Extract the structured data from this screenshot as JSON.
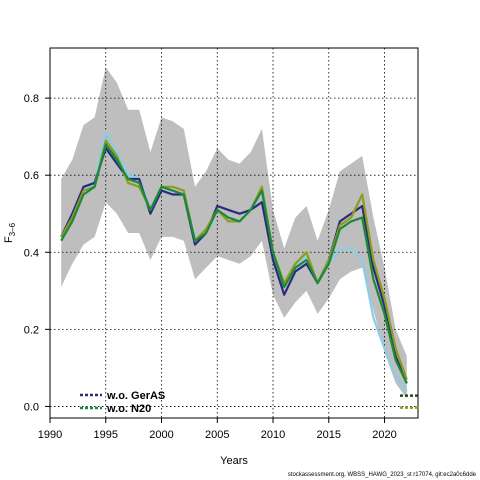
{
  "chart_data": {
    "type": "line",
    "title": "",
    "xlabel": "Years",
    "ylabel_main": "F",
    "ylabel_sub": "3–6",
    "xlim": [
      1990,
      2023
    ],
    "ylim": [
      -0.03,
      0.93
    ],
    "x_ticks": [
      1990,
      1995,
      2000,
      2005,
      2010,
      2015,
      2020
    ],
    "y_ticks": [
      0.0,
      0.2,
      0.4,
      0.6,
      0.8
    ],
    "y_tick_labels": [
      "0.0",
      "0.2",
      "0.4",
      "0.6",
      "0.8"
    ],
    "grid": true,
    "legend_position": "bottom-left",
    "footnote": "stockassessment.org, WBSS_HAWG_2023_st r17074, git:ec2a0c6dde",
    "x": [
      1991,
      1992,
      1993,
      1994,
      1995,
      1996,
      1997,
      1998,
      1999,
      2000,
      2001,
      2002,
      2003,
      2004,
      2005,
      2006,
      2007,
      2008,
      2009,
      2010,
      2011,
      2012,
      2013,
      2014,
      2015,
      2016,
      2017,
      2018,
      2019,
      2020,
      2021,
      2022
    ],
    "band": {
      "color": "#bebebe",
      "upper": [
        0.59,
        0.64,
        0.73,
        0.75,
        0.88,
        0.84,
        0.77,
        0.77,
        0.66,
        0.75,
        0.74,
        0.72,
        0.57,
        0.61,
        0.67,
        0.64,
        0.63,
        0.66,
        0.72,
        0.51,
        0.41,
        0.49,
        0.52,
        0.43,
        0.51,
        0.61,
        0.63,
        0.65,
        0.49,
        0.36,
        0.2,
        0.13
      ],
      "lower": [
        0.31,
        0.37,
        0.42,
        0.44,
        0.53,
        0.5,
        0.45,
        0.45,
        0.38,
        0.44,
        0.44,
        0.43,
        0.33,
        0.36,
        0.39,
        0.38,
        0.37,
        0.39,
        0.43,
        0.29,
        0.23,
        0.27,
        0.3,
        0.24,
        0.28,
        0.33,
        0.35,
        0.36,
        0.25,
        0.14,
        0.06,
        0.02
      ]
    },
    "series": [
      {
        "color": "#87ceeb",
        "width": 2.2,
        "values": [
          0.43,
          0.48,
          0.56,
          0.58,
          0.71,
          0.66,
          0.6,
          0.59,
          0.51,
          0.57,
          0.57,
          0.56,
          0.43,
          0.46,
          0.51,
          0.49,
          0.48,
          0.51,
          0.56,
          0.4,
          0.31,
          0.36,
          0.39,
          0.32,
          0.37,
          0.41,
          0.41,
          0.38,
          0.23,
          0.15,
          0.08,
          0.04
        ]
      },
      {
        "color": "#2b2b7e",
        "width": 2.2,
        "values": [
          0.44,
          0.5,
          0.57,
          0.58,
          0.67,
          0.63,
          0.59,
          0.59,
          0.5,
          0.56,
          0.55,
          0.55,
          0.42,
          0.45,
          0.52,
          0.51,
          0.5,
          0.51,
          0.53,
          0.38,
          0.29,
          0.35,
          0.37,
          0.32,
          0.38,
          0.48,
          0.5,
          0.52,
          0.36,
          0.26,
          0.13,
          0.06
        ]
      },
      {
        "color": "#8f9b1c",
        "width": 2.2,
        "values": [
          0.44,
          0.49,
          0.56,
          0.57,
          0.69,
          0.65,
          0.58,
          0.57,
          0.51,
          0.57,
          0.57,
          0.56,
          0.43,
          0.46,
          0.51,
          0.48,
          0.48,
          0.51,
          0.57,
          0.4,
          0.32,
          0.37,
          0.4,
          0.32,
          0.38,
          0.47,
          0.49,
          0.55,
          0.38,
          0.28,
          0.15,
          0.07
        ]
      },
      {
        "color": "#1a8a3a",
        "width": 2.2,
        "values": [
          0.43,
          0.48,
          0.55,
          0.57,
          0.68,
          0.64,
          0.59,
          0.58,
          0.51,
          0.57,
          0.56,
          0.55,
          0.43,
          0.45,
          0.51,
          0.49,
          0.48,
          0.51,
          0.56,
          0.4,
          0.31,
          0.36,
          0.38,
          0.32,
          0.37,
          0.46,
          0.48,
          0.49,
          0.33,
          0.24,
          0.12,
          0.06
        ]
      }
    ],
    "legend": [
      {
        "label": "w.o. GerAS",
        "color": "#2b2b7e",
        "style": "dashed"
      },
      {
        "label": "w.o. N20",
        "color": "#1a8a3a",
        "style": "dashed"
      }
    ]
  }
}
